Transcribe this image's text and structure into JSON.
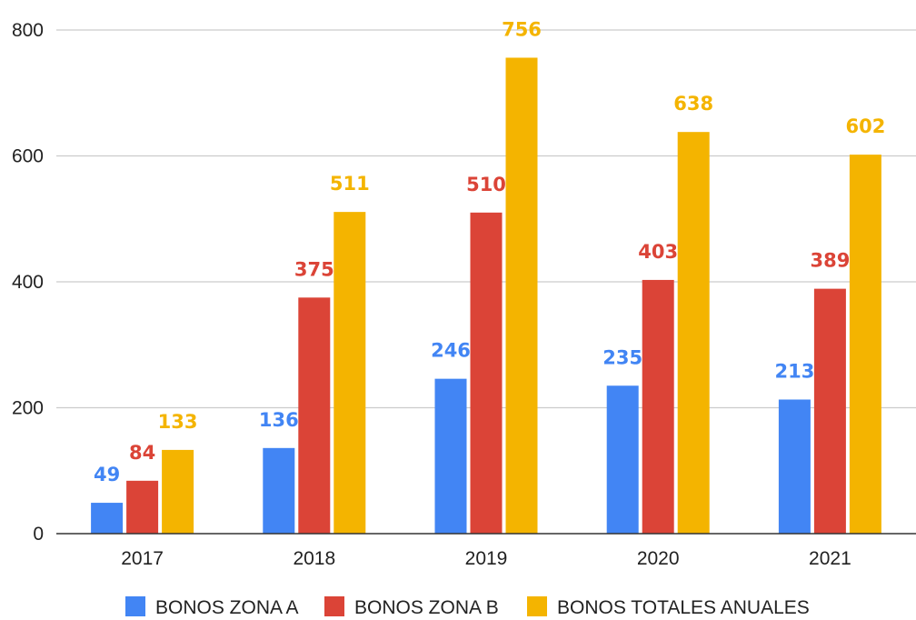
{
  "chart_data": {
    "type": "bar",
    "title": "",
    "xlabel": "",
    "ylabel": "",
    "categories": [
      "2017",
      "2018",
      "2019",
      "2020",
      "2021"
    ],
    "ylim": [
      0,
      800
    ],
    "yticks": [
      0,
      200,
      400,
      600,
      800
    ],
    "grid": true,
    "legend_position": "bottom",
    "series": [
      {
        "name": "BONOS ZONA A",
        "color": "#4285F4",
        "values": [
          49,
          136,
          246,
          235,
          213
        ]
      },
      {
        "name": "BONOS ZONA B",
        "color": "#DB4437",
        "values": [
          84,
          375,
          510,
          403,
          389
        ]
      },
      {
        "name": "BONOS TOTALES ANUALES",
        "color": "#F4B400",
        "values": [
          133,
          511,
          756,
          638,
          602
        ]
      }
    ]
  }
}
